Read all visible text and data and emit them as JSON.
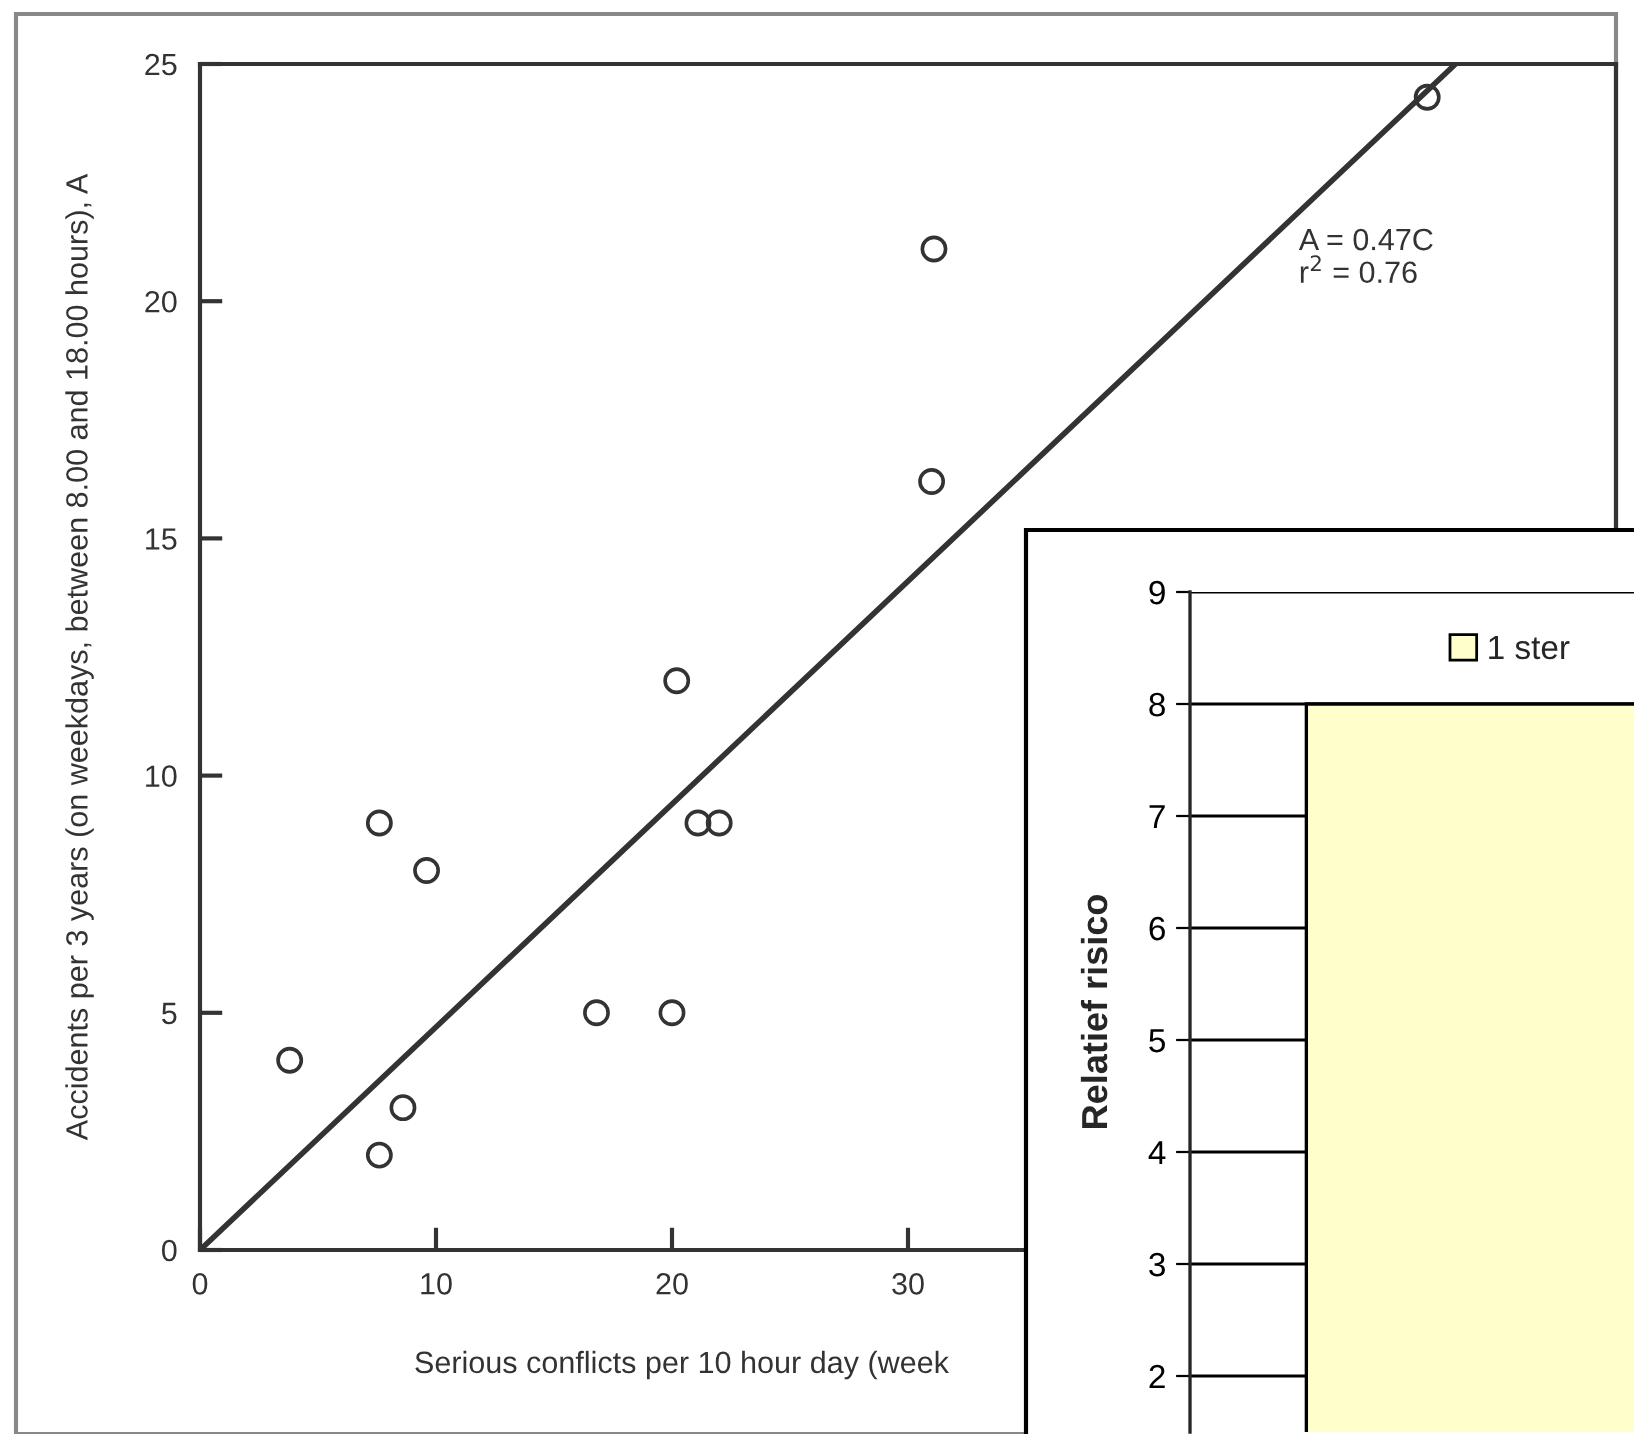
{
  "chart_data": [
    {
      "type": "scatter",
      "xlabel": "Serious conflicts per 10 hour day (week",
      "ylabel": "Accidents per 3 years (on weekdays, between 8.00 and 18.00 hours), A",
      "xlim": [
        0,
        60
      ],
      "xticks": [
        0,
        10,
        20,
        30
      ],
      "ylim": [
        0,
        25
      ],
      "yticks": [
        0,
        5,
        10,
        15,
        20,
        25
      ],
      "grid": false,
      "series": [
        {
          "type": "scatter",
          "marker": "circle",
          "color": "#333333",
          "x": [
            3.8,
            7.6,
            9.6,
            7.6,
            8.6,
            16.8,
            20,
            20.2,
            21.1,
            22,
            31,
            31.1,
            52
          ],
          "values": [
            4,
            9,
            8,
            2,
            3,
            5,
            5,
            12,
            9,
            9,
            16.2,
            21.1,
            24.3
          ]
        },
        {
          "type": "line",
          "color": "#333333",
          "line_style": "solid",
          "x": [
            0,
            53.2
          ],
          "values": [
            0,
            25
          ]
        }
      ],
      "annotations": [
        "A = 0.47C\nr$^{2}$ = 0.76"
      ]
    },
    {
      "type": "bar",
      "ylabel": "Relatief risico",
      "categories": [
        null
      ],
      "ylim": [
        1.5,
        9
      ],
      "yticks": [
        2,
        3,
        4,
        5,
        6,
        7,
        8,
        9
      ],
      "grid": "y",
      "legend": "top",
      "series": [
        {
          "name": "1 ster",
          "color": "#ffffcc",
          "values": [
            8
          ]
        }
      ]
    }
  ]
}
